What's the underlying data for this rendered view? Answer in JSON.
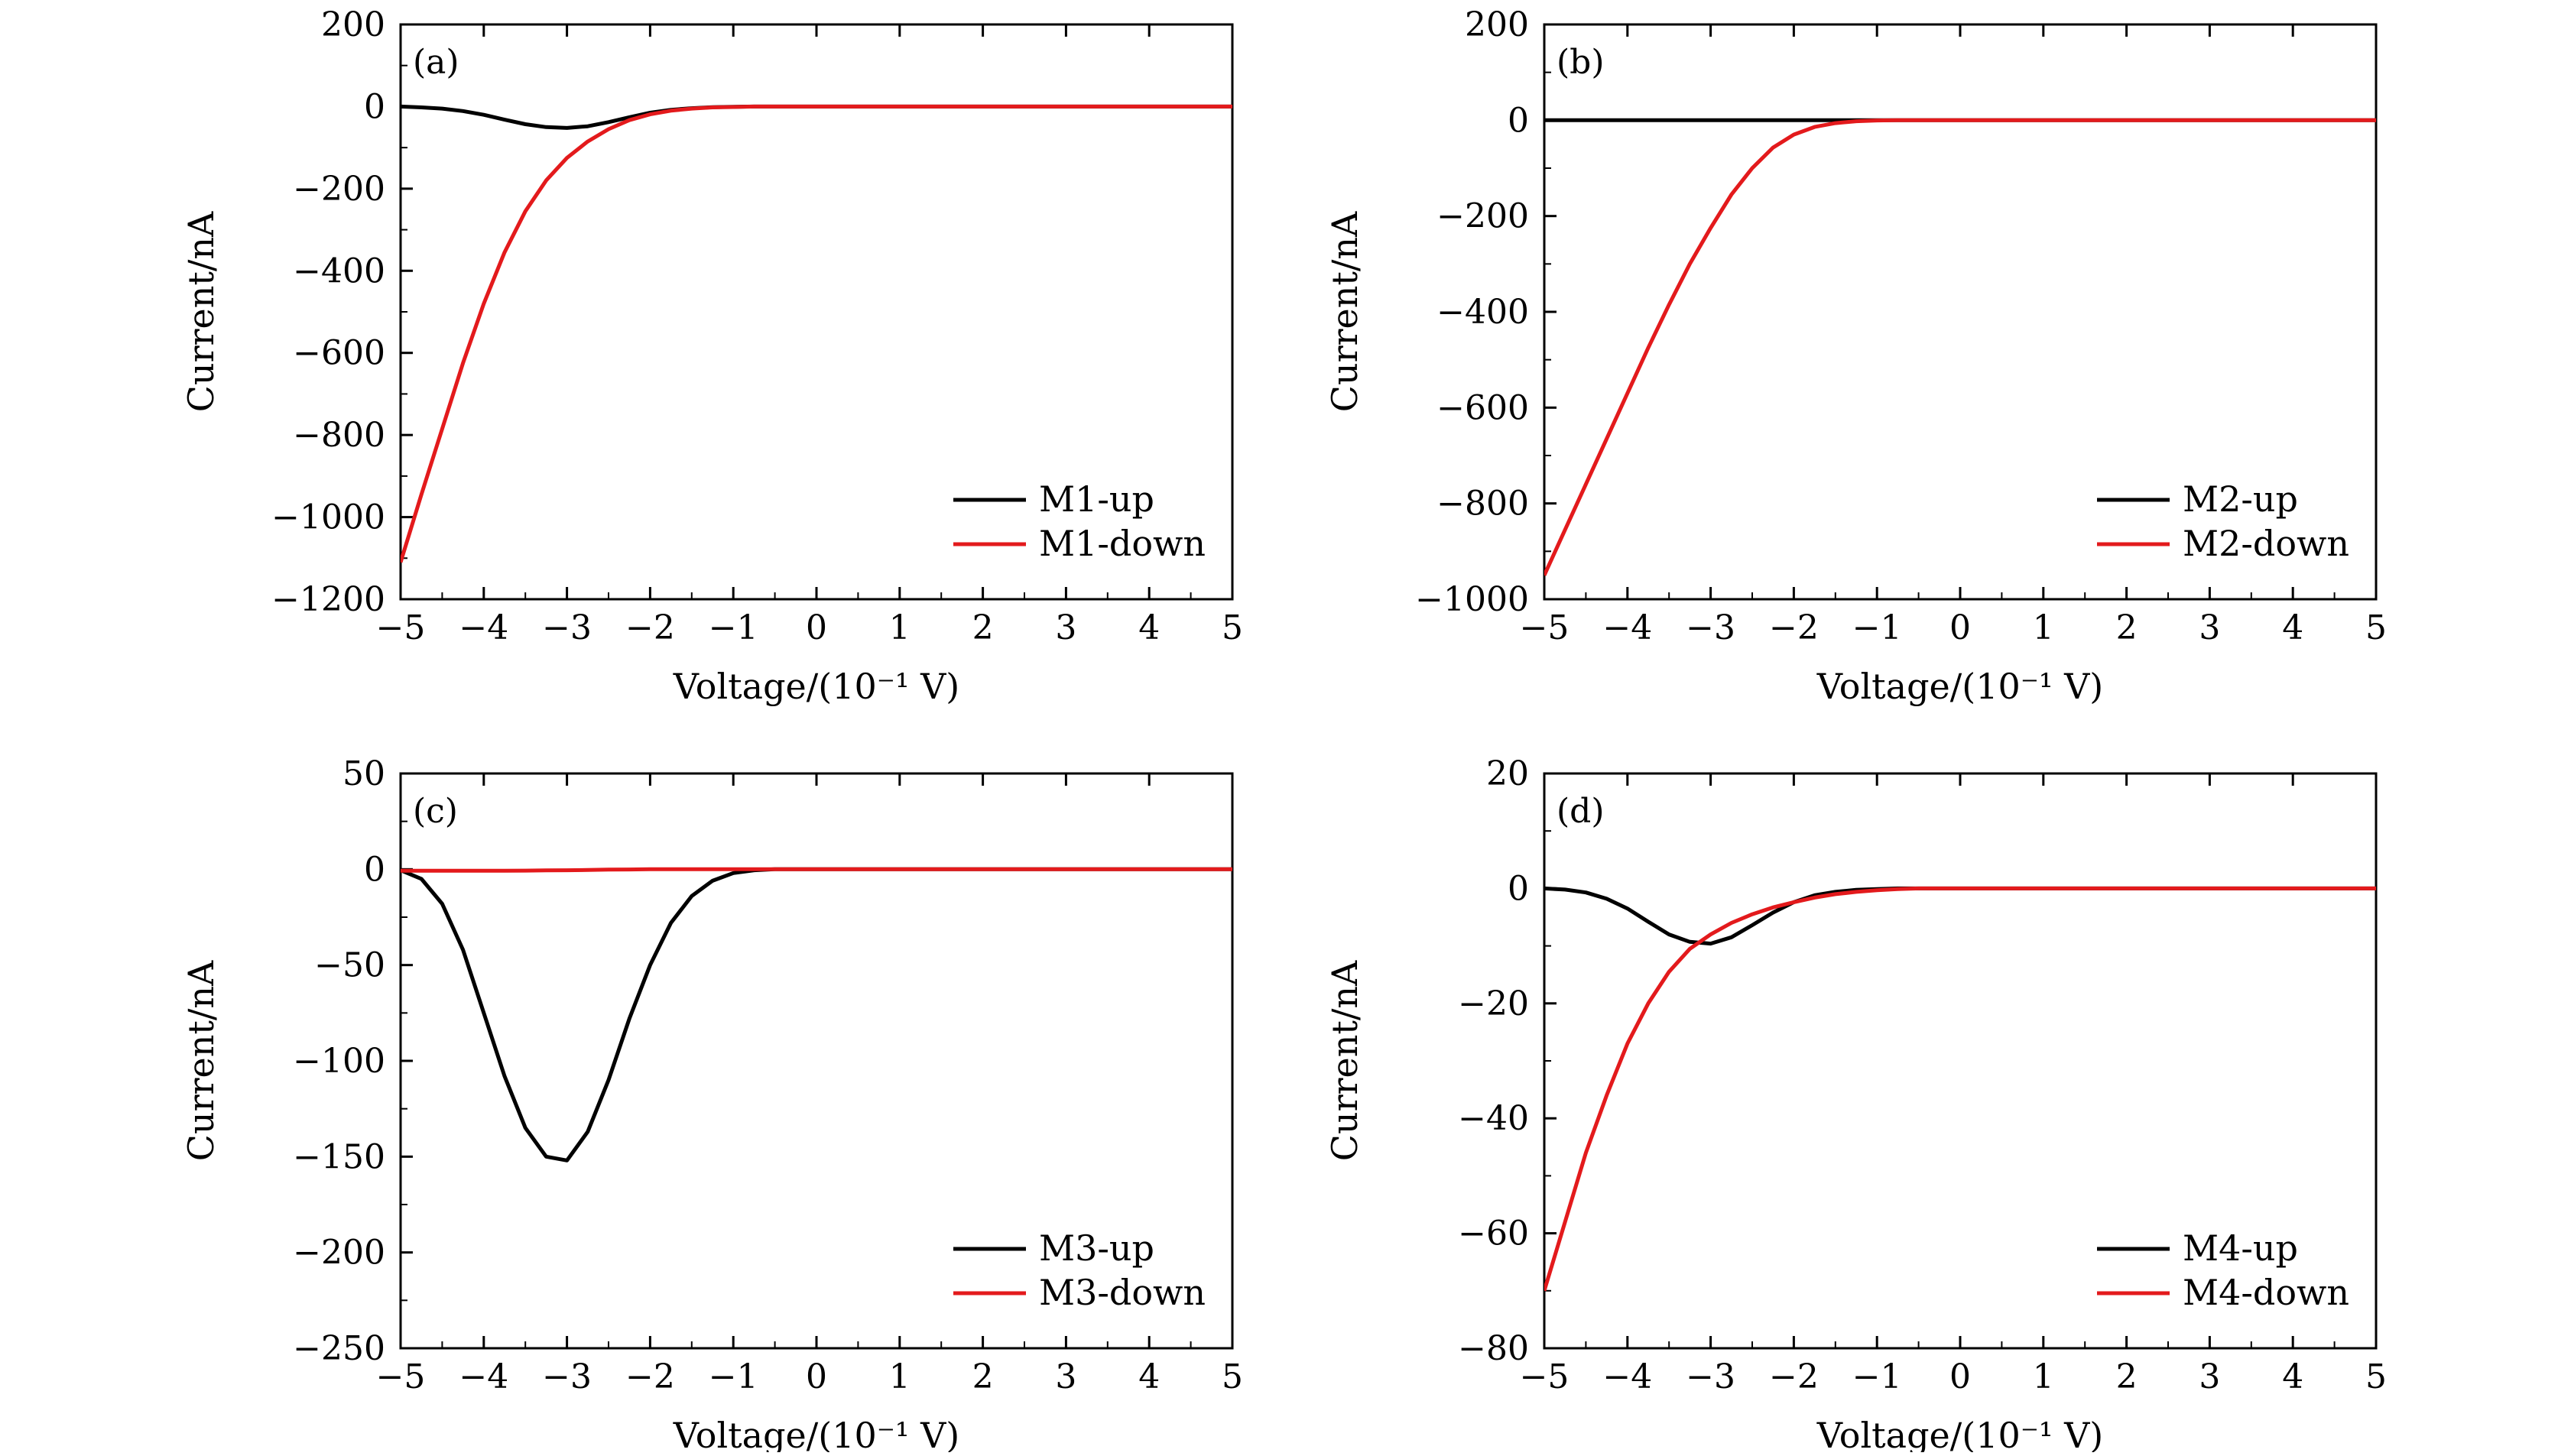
{
  "chart_data": [
    {
      "type": "line",
      "panel_label": "(a)",
      "xlabel": "Voltage/(10⁻¹ V)",
      "ylabel": "Current/nA",
      "xlim": [
        -5,
        5
      ],
      "ylim": [
        -1200,
        200
      ],
      "x_ticks": [
        -5,
        -4,
        -3,
        -2,
        -1,
        0,
        1,
        2,
        3,
        4,
        5
      ],
      "y_ticks": [
        -1200,
        -1000,
        -800,
        -600,
        -400,
        -200,
        0,
        200
      ],
      "x_tick_labels": [
        "−5",
        "−4",
        "−3",
        "−2",
        "−1",
        "0",
        "1",
        "2",
        "3",
        "4",
        "5"
      ],
      "y_tick_labels": [
        "−1200",
        "−1000",
        "−800",
        "−600",
        "−400",
        "−200",
        "0",
        "200"
      ],
      "legend_position": "bottom-right",
      "x": [
        -5,
        -4.75,
        -4.5,
        -4.25,
        -4,
        -3.75,
        -3.5,
        -3.25,
        -3,
        -2.75,
        -2.5,
        -2.25,
        -2,
        -1.75,
        -1.5,
        -1.25,
        -1,
        -0.75,
        -0.5,
        -0.25,
        0,
        0.5,
        1,
        2,
        3,
        4,
        5
      ],
      "series": [
        {
          "name": "M1-up",
          "color": "#000000",
          "values": [
            0,
            -2,
            -5,
            -11,
            -20,
            -32,
            -43,
            -50,
            -52,
            -48,
            -38,
            -26,
            -15,
            -8,
            -4,
            -1.5,
            -0.5,
            0,
            0,
            0,
            0,
            0,
            0,
            0,
            0,
            0,
            0
          ]
        },
        {
          "name": "M1-down",
          "color": "#e31a1c",
          "values": [
            -1110,
            -945,
            -785,
            -625,
            -480,
            -355,
            -255,
            -180,
            -125,
            -85,
            -55,
            -33,
            -19,
            -10,
            -5,
            -2,
            -1,
            0,
            0,
            0,
            0,
            0,
            0,
            0,
            0,
            0,
            0
          ]
        }
      ]
    },
    {
      "type": "line",
      "panel_label": "(b)",
      "xlabel": "Voltage/(10⁻¹ V)",
      "ylabel": "Current/nA",
      "xlim": [
        -5,
        5
      ],
      "ylim": [
        -1000,
        200
      ],
      "x_ticks": [
        -5,
        -4,
        -3,
        -2,
        -1,
        0,
        1,
        2,
        3,
        4,
        5
      ],
      "y_ticks": [
        -1000,
        -800,
        -600,
        -400,
        -200,
        0,
        200
      ],
      "x_tick_labels": [
        "−5",
        "−4",
        "−3",
        "−2",
        "−1",
        "0",
        "1",
        "2",
        "3",
        "4",
        "5"
      ],
      "y_tick_labels": [
        "−1000",
        "−800",
        "−600",
        "−400",
        "−200",
        "0",
        "200"
      ],
      "legend_position": "bottom-right",
      "x": [
        -5,
        -4.75,
        -4.5,
        -4.25,
        -4,
        -3.75,
        -3.5,
        -3.25,
        -3,
        -2.75,
        -2.5,
        -2.25,
        -2,
        -1.75,
        -1.5,
        -1.25,
        -1,
        -0.75,
        -0.5,
        -0.25,
        0,
        0.5,
        1,
        2,
        3,
        4,
        5
      ],
      "series": [
        {
          "name": "M2-up",
          "color": "#000000",
          "values": [
            0,
            0,
            0,
            0,
            0,
            0,
            0,
            0,
            0,
            0,
            0,
            0,
            0,
            0,
            0,
            0,
            0,
            0,
            0,
            0,
            0,
            0,
            0,
            0,
            0,
            0,
            0
          ]
        },
        {
          "name": "M2-down",
          "color": "#e31a1c",
          "values": [
            -950,
            -855,
            -760,
            -665,
            -570,
            -475,
            -385,
            -300,
            -225,
            -155,
            -100,
            -57,
            -30,
            -14,
            -6,
            -2,
            -0.5,
            0,
            0,
            0,
            0,
            0,
            0,
            0,
            0,
            0,
            0
          ]
        }
      ]
    },
    {
      "type": "line",
      "panel_label": "(c)",
      "xlabel": "Voltage/(10⁻¹ V)",
      "ylabel": "Current/nA",
      "xlim": [
        -5,
        5
      ],
      "ylim": [
        -250,
        50
      ],
      "x_ticks": [
        -5,
        -4,
        -3,
        -2,
        -1,
        0,
        1,
        2,
        3,
        4,
        5
      ],
      "y_ticks": [
        -250,
        -200,
        -150,
        -100,
        -50,
        0,
        50
      ],
      "x_tick_labels": [
        "−5",
        "−4",
        "−3",
        "−2",
        "−1",
        "0",
        "1",
        "2",
        "3",
        "4",
        "5"
      ],
      "y_tick_labels": [
        "−250",
        "−200",
        "−150",
        "−100",
        "−50",
        "0",
        "50"
      ],
      "legend_position": "bottom-right",
      "x": [
        -5,
        -4.75,
        -4.5,
        -4.25,
        -4,
        -3.75,
        -3.5,
        -3.25,
        -3,
        -2.75,
        -2.5,
        -2.25,
        -2,
        -1.75,
        -1.5,
        -1.25,
        -1,
        -0.75,
        -0.5,
        -0.25,
        0,
        0.5,
        1,
        2,
        3,
        4,
        5
      ],
      "series": [
        {
          "name": "M3-up",
          "color": "#000000",
          "values": [
            -0.5,
            -5,
            -18,
            -42,
            -75,
            -108,
            -135,
            -150,
            -152,
            -137,
            -110,
            -78,
            -50,
            -28,
            -14,
            -6,
            -2,
            -0.5,
            0,
            0,
            0,
            0,
            0,
            0,
            0,
            0,
            0
          ]
        },
        {
          "name": "M3-down",
          "color": "#e31a1c",
          "values": [
            -0.8,
            -0.8,
            -0.8,
            -0.8,
            -0.8,
            -0.8,
            -0.7,
            -0.6,
            -0.5,
            -0.4,
            -0.2,
            -0.1,
            0,
            0,
            0,
            0,
            0,
            0,
            0,
            0,
            0,
            0,
            0,
            0,
            0,
            0,
            0
          ]
        }
      ]
    },
    {
      "type": "line",
      "panel_label": "(d)",
      "xlabel": "Voltage/(10⁻¹ V)",
      "ylabel": "Current/nA",
      "xlim": [
        -5,
        5
      ],
      "ylim": [
        -80,
        20
      ],
      "x_ticks": [
        -5,
        -4,
        -3,
        -2,
        -1,
        0,
        1,
        2,
        3,
        4,
        5
      ],
      "y_ticks": [
        -80,
        -60,
        -40,
        -20,
        0,
        20
      ],
      "x_tick_labels": [
        "−5",
        "−4",
        "−3",
        "−2",
        "−1",
        "0",
        "1",
        "2",
        "3",
        "4",
        "5"
      ],
      "y_tick_labels": [
        "−80",
        "−60",
        "−40",
        "−20",
        "0",
        "20"
      ],
      "legend_position": "bottom-right",
      "x": [
        -5,
        -4.75,
        -4.5,
        -4.25,
        -4,
        -3.75,
        -3.5,
        -3.25,
        -3,
        -2.75,
        -2.5,
        -2.25,
        -2,
        -1.75,
        -1.5,
        -1.25,
        -1,
        -0.75,
        -0.5,
        -0.25,
        0,
        0.5,
        1,
        2,
        3,
        4,
        5
      ],
      "series": [
        {
          "name": "M4-up",
          "color": "#000000",
          "values": [
            0,
            -0.2,
            -0.7,
            -1.8,
            -3.5,
            -5.8,
            -8,
            -9.3,
            -9.6,
            -8.5,
            -6.4,
            -4.2,
            -2.4,
            -1.2,
            -0.6,
            -0.25,
            -0.1,
            0,
            0,
            0,
            0,
            0,
            0,
            0,
            0,
            0,
            0
          ]
        },
        {
          "name": "M4-down",
          "color": "#e31a1c",
          "values": [
            -70,
            -58,
            -46,
            -36,
            -27,
            -20,
            -14.5,
            -10.5,
            -8,
            -6,
            -4.5,
            -3.3,
            -2.4,
            -1.6,
            -1,
            -0.6,
            -0.3,
            -0.1,
            0,
            0,
            0,
            0,
            0,
            0,
            0,
            0,
            0
          ]
        }
      ]
    }
  ]
}
